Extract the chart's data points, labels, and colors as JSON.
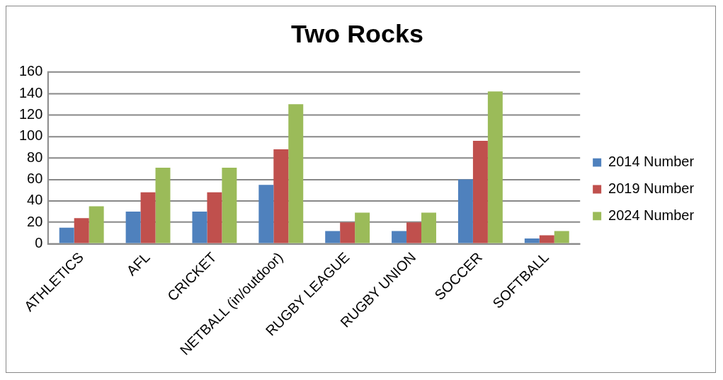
{
  "chart_data": {
    "type": "bar",
    "title": "Two Rocks",
    "categories": [
      "ATHLETICS",
      "AFL",
      "CRICKET",
      "NETBALL (in/outdoor)",
      "RUGBY LEAGUE",
      "RUGBY UNION",
      "SOCCER",
      "SOFTBALL"
    ],
    "series": [
      {
        "name": "2014 Number",
        "color": "#4f81bd",
        "values": [
          15,
          30,
          30,
          55,
          12,
          12,
          60,
          5
        ]
      },
      {
        "name": "2019 Number",
        "color": "#c0504d",
        "values": [
          24,
          48,
          48,
          88,
          20,
          20,
          96,
          8
        ]
      },
      {
        "name": "2024 Number",
        "color": "#9bbb59",
        "values": [
          35,
          71,
          71,
          130,
          29,
          29,
          142,
          12
        ]
      }
    ],
    "ylim": [
      0,
      160
    ],
    "yticks": [
      0,
      20,
      40,
      60,
      80,
      100,
      120,
      140,
      160
    ],
    "grid": "y",
    "legend": "right"
  }
}
